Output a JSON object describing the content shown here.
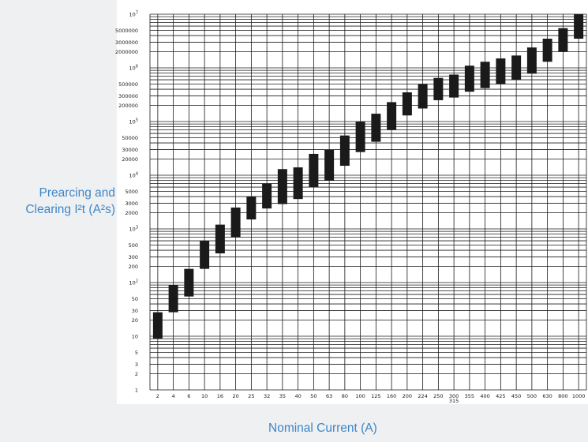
{
  "chart_data": {
    "type": "bar",
    "subtype": "floating-range (min-max) on log y-axis",
    "xlabel": "Nominal Current (A)",
    "ylabel_line1": "Prearcing and",
    "ylabel_line2": "Clearing I²t (A²s)",
    "y_scale": "log",
    "ylim": [
      1,
      10000000
    ],
    "grid": true,
    "bar_color": "#1a1a1a",
    "categories": [
      "2",
      "4",
      "6",
      "10",
      "16",
      "20",
      "25",
      "32",
      "35",
      "40",
      "50",
      "63",
      "80",
      "100",
      "125",
      "160",
      "200",
      "224",
      "250",
      "300",
      "355",
      "400",
      "425",
      "450",
      "500",
      "630",
      "800",
      "1000"
    ],
    "x_sub_label": "315",
    "x_sub_label_under": "300",
    "series": [
      {
        "low": [
          9,
          28,
          55,
          180,
          350,
          700,
          1500,
          2400,
          2900,
          3600,
          6000,
          8000,
          15000,
          27000,
          42000,
          70000,
          130000,
          175000,
          250000,
          280000,
          360000,
          420000,
          500000,
          600000,
          780000,
          1300000,
          2000000,
          3500000
        ],
        "high": [
          28,
          90,
          180,
          600,
          1200,
          2500,
          4000,
          7000,
          13000,
          14000,
          25000,
          30000,
          55000,
          100000,
          140000,
          230000,
          350000,
          500000,
          650000,
          750000,
          1100000,
          1300000,
          1500000,
          1700000,
          2400000,
          3500000,
          5500000,
          10000000
        ]
      }
    ],
    "y_tick_labels": [
      {
        "value": 1,
        "label": "1"
      },
      {
        "value": 2,
        "label": "2"
      },
      {
        "value": 3,
        "label": "3"
      },
      {
        "value": 5,
        "label": "5"
      },
      {
        "value": 10,
        "label": "10"
      },
      {
        "value": 20,
        "label": "20"
      },
      {
        "value": 30,
        "label": "30"
      },
      {
        "value": 50,
        "label": "50"
      },
      {
        "value": 100,
        "label": "10",
        "sup": "2"
      },
      {
        "value": 200,
        "label": "200"
      },
      {
        "value": 300,
        "label": "300"
      },
      {
        "value": 500,
        "label": "500"
      },
      {
        "value": 1000,
        "label": "10",
        "sup": "3"
      },
      {
        "value": 2000,
        "label": "2000"
      },
      {
        "value": 3000,
        "label": "3000"
      },
      {
        "value": 5000,
        "label": "5000"
      },
      {
        "value": 10000,
        "label": "10",
        "sup": "4"
      },
      {
        "value": 20000,
        "label": "20000"
      },
      {
        "value": 30000,
        "label": "30000"
      },
      {
        "value": 50000,
        "label": "50000"
      },
      {
        "value": 100000,
        "label": "10",
        "sup": "5"
      },
      {
        "value": 200000,
        "label": "200000"
      },
      {
        "value": 300000,
        "label": "300000"
      },
      {
        "value": 500000,
        "label": "500000"
      },
      {
        "value": 1000000,
        "label": "10",
        "sup": "6"
      },
      {
        "value": 2000000,
        "label": "2000000"
      },
      {
        "value": 3000000,
        "label": "3000000"
      },
      {
        "value": 5000000,
        "label": "5000000"
      },
      {
        "value": 10000000,
        "label": "10",
        "sup": "7"
      }
    ]
  }
}
